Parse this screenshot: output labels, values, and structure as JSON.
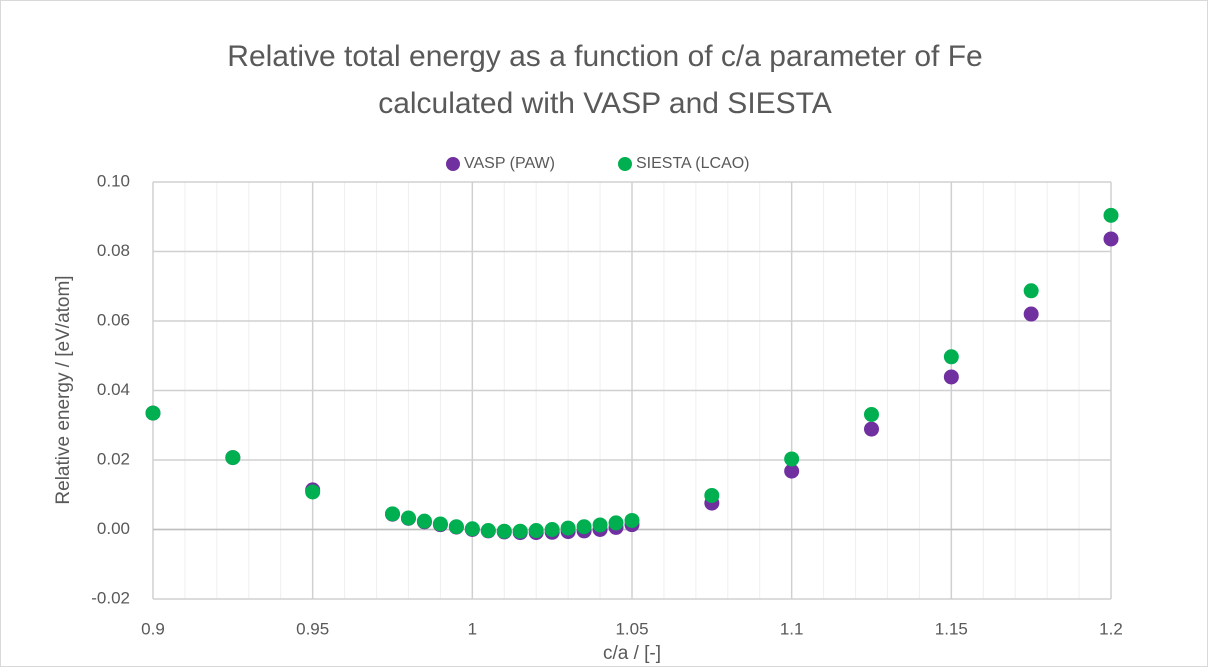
{
  "chart_data": {
    "type": "scatter",
    "title": [
      "Relative total energy as a function of c/a parameter of Fe",
      "calculated with VASP and SIESTA"
    ],
    "x_label": "c/a / [-]",
    "y_label": "Relative energy / [eV/atom]",
    "xlim": [
      0.9,
      1.2
    ],
    "xticks": [
      0.9,
      0.95,
      1,
      1.05,
      1.1,
      1.15,
      1.2
    ],
    "xminorticks": [
      0.91,
      0.92,
      0.93,
      0.94,
      0.96,
      0.97,
      0.98,
      0.99,
      1.01,
      1.02,
      1.03,
      1.04,
      1.06,
      1.07,
      1.08,
      1.09,
      1.11,
      1.12,
      1.13,
      1.14,
      1.16,
      1.17,
      1.18,
      1.19
    ],
    "ylim": [
      -0.02,
      0.1
    ],
    "yticks": [
      -0.02,
      {
        "value": 0,
        "label": "0.00"
      },
      0.02,
      0.04,
      0.06,
      0.08,
      {
        "value": 0.1,
        "label": "0.10"
      }
    ],
    "grid": true,
    "legend": "top",
    "series": [
      {
        "name": "VASP (PAW)",
        "color": "#7030a0",
        "x": [
          0.9,
          0.925,
          0.95,
          0.975,
          0.98,
          0.985,
          0.99,
          0.995,
          1.0,
          1.005,
          1.01,
          1.015,
          1.02,
          1.025,
          1.03,
          1.035,
          1.04,
          1.045,
          1.05,
          1.075,
          1.1,
          1.125,
          1.15,
          1.175,
          1.2
        ],
        "values": [
          0.0335,
          0.0207,
          0.0114,
          0.0044,
          0.0032,
          0.0022,
          0.0014,
          0.0007,
          0.0,
          -0.0004,
          -0.0007,
          -0.0009,
          -0.0009,
          -0.0008,
          -0.0006,
          -0.0004,
          0.0,
          0.0006,
          0.0014,
          0.0076,
          0.0168,
          0.0289,
          0.0439,
          0.062,
          0.0836
        ]
      },
      {
        "name": "SIESTA (LCAO)",
        "color": "#00b050",
        "x": [
          0.9,
          0.925,
          0.95,
          0.975,
          0.98,
          0.985,
          0.99,
          0.995,
          1.0,
          1.005,
          1.01,
          1.015,
          1.02,
          1.025,
          1.03,
          1.035,
          1.04,
          1.045,
          1.05,
          1.075,
          1.1,
          1.125,
          1.15,
          1.175,
          1.2
        ],
        "values": [
          0.0335,
          0.0207,
          0.0108,
          0.0045,
          0.0033,
          0.0024,
          0.0016,
          0.0008,
          0.0002,
          -0.0003,
          -0.0005,
          -0.0005,
          -0.0003,
          0.0,
          0.0004,
          0.0008,
          0.0013,
          0.0019,
          0.0026,
          0.0098,
          0.0203,
          0.0331,
          0.0497,
          0.0687,
          0.0904
        ]
      }
    ]
  }
}
